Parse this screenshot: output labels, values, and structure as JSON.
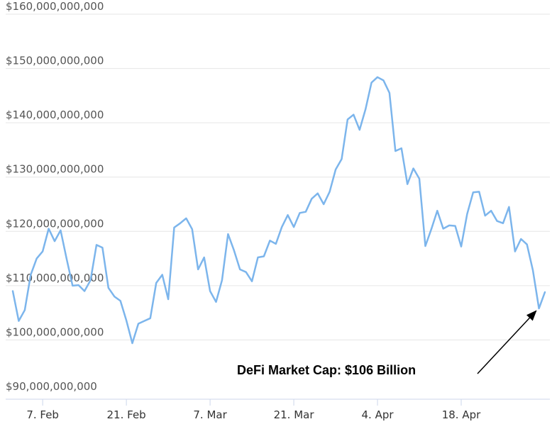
{
  "chart_data": {
    "type": "line",
    "title": "",
    "xlabel": "",
    "ylabel": "",
    "ylim": [
      90000000000,
      160000000000
    ],
    "y_ticks": [
      {
        "value": 160000000000,
        "label": "$160,000,000,000"
      },
      {
        "value": 150000000000,
        "label": "$150,000,000,000"
      },
      {
        "value": 140000000000,
        "label": "$140,000,000,000"
      },
      {
        "value": 130000000000,
        "label": "$130,000,000,000"
      },
      {
        "value": 120000000000,
        "label": "$120,000,000,000"
      },
      {
        "value": 110000000000,
        "label": "$110,000,000,000"
      },
      {
        "value": 100000000000,
        "label": "$100,000,000,000"
      },
      {
        "value": 90000000000,
        "label": "$90,000,000,000"
      }
    ],
    "x_ticks": [
      {
        "day": 6,
        "label": "7. Feb"
      },
      {
        "day": 20,
        "label": "21. Feb"
      },
      {
        "day": 34,
        "label": "7. Mar"
      },
      {
        "day": 48,
        "label": "21. Mar"
      },
      {
        "day": 62,
        "label": "4. Apr"
      },
      {
        "day": 76,
        "label": "18. Apr"
      }
    ],
    "x_range": [
      1,
      90
    ],
    "series": [
      {
        "name": "DeFi Market Cap",
        "color": "#7cb5ec",
        "x": [
          1,
          2,
          3,
          4,
          5,
          6,
          7,
          8,
          9,
          10,
          11,
          12,
          13,
          14,
          15,
          16,
          17,
          18,
          19,
          20,
          21,
          22,
          23,
          24,
          25,
          26,
          27,
          28,
          29,
          30,
          31,
          32,
          33,
          34,
          35,
          36,
          37,
          38,
          39,
          40,
          41,
          42,
          43,
          44,
          45,
          46,
          47,
          48,
          49,
          50,
          51,
          52,
          53,
          54,
          55,
          56,
          57,
          58,
          59,
          60,
          61,
          62,
          63,
          64,
          65,
          66,
          67,
          68,
          69,
          70,
          71,
          72,
          73,
          74,
          75,
          76,
          77,
          78,
          79,
          80,
          81,
          82,
          83,
          84,
          85,
          86,
          87,
          88,
          89,
          90
        ],
        "values": [
          109,
          103.5,
          105.5,
          112,
          115,
          116.3,
          120.5,
          118.2,
          120.2,
          115,
          110,
          110.1,
          109,
          111,
          117.5,
          117,
          109.6,
          108,
          107.2,
          103.6,
          99.4,
          103,
          103.5,
          104,
          110.5,
          112,
          107.5,
          120.7,
          121.5,
          122.4,
          120.4,
          113,
          115.2,
          109,
          107,
          111,
          119.5,
          116.5,
          113,
          112.5,
          110.8,
          115.2,
          115.4,
          118.3,
          117.7,
          120.8,
          123,
          120.8,
          123.4,
          123.6,
          126,
          127,
          125,
          127.3,
          131.4,
          133.3,
          140.6,
          141.5,
          138.7,
          142.5,
          147.4,
          148.4,
          147.8,
          145.5,
          134.8,
          135.3,
          128.7,
          131.6,
          129.7,
          117.3,
          120.4,
          123.8,
          120.5,
          121.1,
          121,
          117.2,
          123.2,
          127.2,
          127.3,
          122.9,
          123.8,
          121.9,
          121.5,
          124.5,
          116.3,
          118.6,
          117.6,
          112.8,
          105.8,
          108.8
        ]
      }
    ],
    "annotation": {
      "text": "DeFi Market Cap: $106 Billion",
      "target_day": 89,
      "target_value": 106
    }
  }
}
